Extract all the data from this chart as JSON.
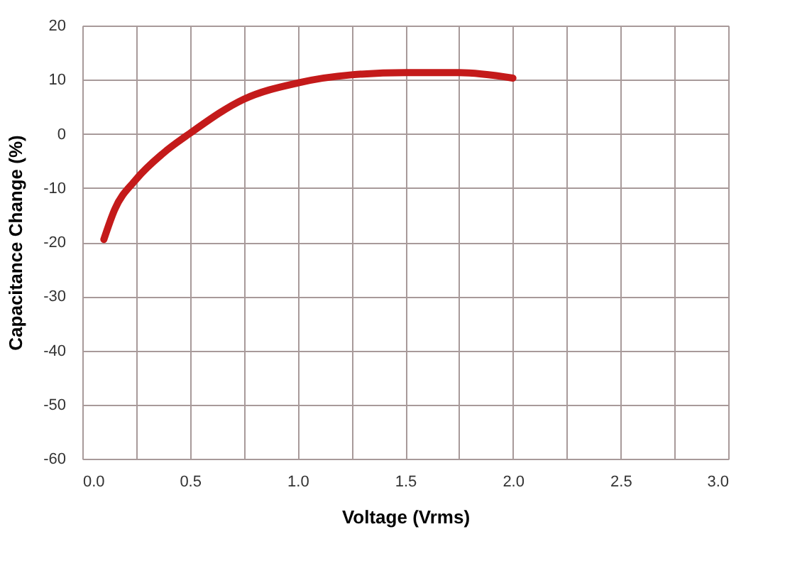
{
  "chart_data": {
    "type": "line",
    "xlabel": "Voltage (Vrms)",
    "ylabel": "Capacitance Change (%)",
    "x": [
      0.1,
      0.15,
      0.25,
      0.375,
      0.5,
      0.75,
      1.0,
      1.25,
      1.5,
      1.75,
      2.0
    ],
    "series": [
      {
        "color": "#c41a1a",
        "values": [
          -19.5,
          -14,
          -8.4,
          -3.6,
          0.1,
          6.4,
          9.4,
          10.9,
          11.3,
          11.3,
          10.3
        ]
      }
    ],
    "xlim": [
      0,
      3
    ],
    "xticks": [
      {
        "value": 0,
        "label": "0.0"
      },
      {
        "value": 0.5,
        "label": "0.5"
      },
      {
        "value": 1,
        "label": "1.0"
      },
      {
        "value": 1.5,
        "label": "1.5"
      },
      {
        "value": 2,
        "label": "2.0"
      },
      {
        "value": 2.5,
        "label": "2.5"
      },
      {
        "value": 3,
        "label": "3.0"
      }
    ],
    "ylim": [
      -60,
      20
    ],
    "yticks": [
      -60,
      -50,
      -40,
      -30,
      -20,
      -10,
      0,
      10,
      20
    ],
    "grid": true,
    "marker": "none",
    "line_style": "solid"
  }
}
